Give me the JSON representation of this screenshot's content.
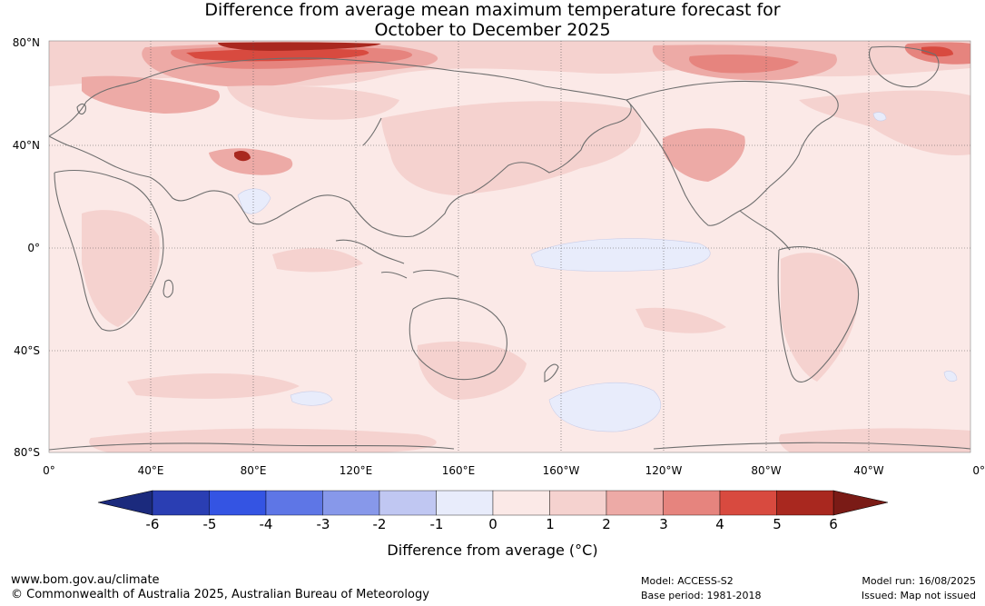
{
  "title": {
    "line1": "Difference from average mean maximum temperature forecast for",
    "line2": "October to December 2025"
  },
  "map": {
    "latitude_labels": [
      "80°N",
      "40°N",
      "0°",
      "40°S",
      "80°S"
    ],
    "longitude_labels": [
      "0°",
      "40°E",
      "80°E",
      "120°E",
      "160°E",
      "160°W",
      "120°W",
      "80°W",
      "40°W",
      "0°"
    ],
    "ocean_base_color": "#fbe9e7",
    "coastline_color": "#6e6e6e"
  },
  "colorbar": {
    "ticks": [
      "-6",
      "-5",
      "-4",
      "-3",
      "-2",
      "-1",
      "0",
      "1",
      "2",
      "3",
      "4",
      "5",
      "6"
    ],
    "low_end_color": "#1b2a7d",
    "high_end_color": "#7a1b16",
    "colors": [
      "#2a3eb3",
      "#3454e3",
      "#5e76e6",
      "#8798ea",
      "#c0c7f2",
      "#e8ecfb",
      "#fbe9e7",
      "#f5d2cf",
      "#edaaa6",
      "#e6847e",
      "#d84a3f",
      "#a9281f"
    ],
    "label": "Difference from average (°C)"
  },
  "footer": {
    "website": "www.bom.gov.au/climate",
    "copyright": "© Commonwealth of Australia 2025, Australian Bureau of Meteorology",
    "model": "Model: ACCESS-S2",
    "base_period": "Base period: 1981-2018",
    "model_run": "Model run: 16/08/2025",
    "issued": "Issued: Map not issued"
  }
}
